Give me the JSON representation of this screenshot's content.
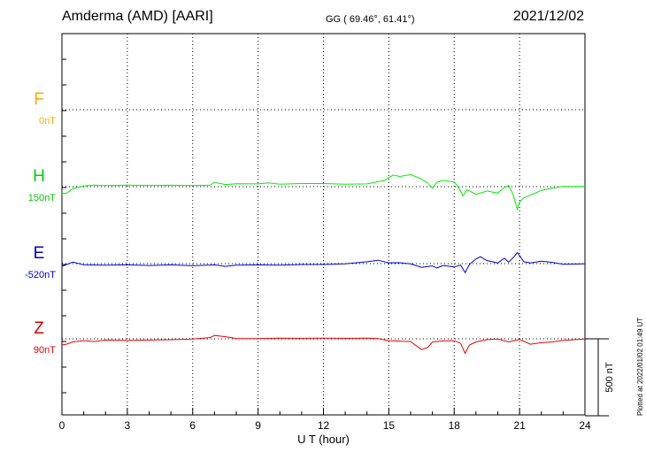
{
  "header": {
    "station": "Amderma (AMD)  [AARI]",
    "coords": "GG ( 69.46°,  61.41°)",
    "date": "2021/12/02"
  },
  "footer": {
    "plotted": "Plotted at 2022/01/02 01:49 UT"
  },
  "chart_data": {
    "type": "line",
    "xlabel": "U T (hour)",
    "xlim": [
      0,
      24
    ],
    "xticks": [
      "0",
      "3",
      "6",
      "9",
      "12",
      "15",
      "18",
      "21",
      "24"
    ],
    "scale_bar_label": "500 nT",
    "grid": true,
    "series": [
      {
        "name": "F",
        "base_label": "0nT",
        "color": "#ffaa00",
        "label_color": "#ffaa00",
        "points": []
      },
      {
        "name": "H",
        "base_label": "150nT",
        "color": "#00ee00",
        "label_color": "#00cc00",
        "points": [
          [
            0,
            -42
          ],
          [
            0.2,
            -45
          ],
          [
            0.5,
            -12
          ],
          [
            1,
            4
          ],
          [
            1.5,
            10
          ],
          [
            2,
            7
          ],
          [
            3,
            10
          ],
          [
            4,
            8
          ],
          [
            5,
            9
          ],
          [
            6,
            7
          ],
          [
            6.8,
            10
          ],
          [
            7,
            28
          ],
          [
            7.5,
            14
          ],
          [
            8,
            19
          ],
          [
            9,
            18
          ],
          [
            9.5,
            25
          ],
          [
            10,
            16
          ],
          [
            11,
            20
          ],
          [
            12,
            20
          ],
          [
            13,
            16
          ],
          [
            14,
            18
          ],
          [
            14.8,
            40
          ],
          [
            15,
            58
          ],
          [
            15.2,
            75
          ],
          [
            15.5,
            66
          ],
          [
            16,
            78
          ],
          [
            16.5,
            50
          ],
          [
            16.8,
            22
          ],
          [
            17,
            -10
          ],
          [
            17.2,
            28
          ],
          [
            17.5,
            40
          ],
          [
            18,
            30
          ],
          [
            18.2,
            -5
          ],
          [
            18.4,
            -60
          ],
          [
            18.6,
            -20
          ],
          [
            19,
            -50
          ],
          [
            19.5,
            -28
          ],
          [
            20,
            -42
          ],
          [
            20.3,
            -5
          ],
          [
            20.5,
            8
          ],
          [
            20.7,
            -50
          ],
          [
            20.9,
            -148
          ],
          [
            21,
            -100
          ],
          [
            21.2,
            -72
          ],
          [
            21.5,
            -55
          ],
          [
            22,
            -24
          ],
          [
            22.5,
            -10
          ],
          [
            23,
            2
          ],
          [
            24,
            2
          ]
        ]
      },
      {
        "name": "E",
        "base_label": "-520nT",
        "color": "#0000dd",
        "label_color": "#0000cc",
        "points": [
          [
            0,
            -18
          ],
          [
            0.5,
            10
          ],
          [
            1,
            -8
          ],
          [
            2,
            -10
          ],
          [
            3,
            -8
          ],
          [
            4,
            -12
          ],
          [
            5,
            -8
          ],
          [
            6,
            -14
          ],
          [
            7,
            -8
          ],
          [
            7.5,
            -18
          ],
          [
            8,
            -10
          ],
          [
            9,
            -8
          ],
          [
            10,
            -10
          ],
          [
            11,
            -6
          ],
          [
            12,
            -6
          ],
          [
            13,
            -2
          ],
          [
            14,
            12
          ],
          [
            14.5,
            22
          ],
          [
            15,
            5
          ],
          [
            15.5,
            6
          ],
          [
            16,
            -2
          ],
          [
            16.5,
            -24
          ],
          [
            17,
            -15
          ],
          [
            17.2,
            -28
          ],
          [
            17.5,
            -12
          ],
          [
            18,
            -22
          ],
          [
            18.3,
            -10
          ],
          [
            18.5,
            -58
          ],
          [
            18.7,
            -5
          ],
          [
            19,
            30
          ],
          [
            19.2,
            45
          ],
          [
            19.5,
            20
          ],
          [
            20,
            4
          ],
          [
            20.3,
            35
          ],
          [
            20.5,
            10
          ],
          [
            20.7,
            38
          ],
          [
            20.9,
            72
          ],
          [
            21.2,
            12
          ],
          [
            21.5,
            4
          ],
          [
            22,
            16
          ],
          [
            22.5,
            8
          ],
          [
            23,
            -4
          ],
          [
            24,
            -2
          ]
        ]
      },
      {
        "name": "Z",
        "base_label": "90nT",
        "color": "#ee0000",
        "label_color": "#dd0000",
        "points": [
          [
            0,
            -40
          ],
          [
            0.2,
            -35
          ],
          [
            0.5,
            -20
          ],
          [
            1,
            -12
          ],
          [
            1.5,
            -18
          ],
          [
            2,
            -8
          ],
          [
            3,
            -10
          ],
          [
            4,
            -8
          ],
          [
            5,
            -6
          ],
          [
            6,
            -2
          ],
          [
            6.8,
            8
          ],
          [
            7,
            22
          ],
          [
            7.5,
            14
          ],
          [
            8,
            2
          ],
          [
            9,
            2
          ],
          [
            10,
            4
          ],
          [
            11,
            3
          ],
          [
            12,
            4
          ],
          [
            13,
            3
          ],
          [
            14,
            4
          ],
          [
            14.5,
            1
          ],
          [
            15,
            -12
          ],
          [
            15.5,
            -15
          ],
          [
            16,
            -18
          ],
          [
            16.5,
            -70
          ],
          [
            16.8,
            -55
          ],
          [
            17,
            -20
          ],
          [
            17.5,
            -14
          ],
          [
            18,
            -12
          ],
          [
            18.3,
            -30
          ],
          [
            18.5,
            -95
          ],
          [
            18.7,
            -40
          ],
          [
            19,
            -20
          ],
          [
            19.5,
            -5
          ],
          [
            20,
            -2
          ],
          [
            20.5,
            -20
          ],
          [
            21,
            -4
          ],
          [
            21.5,
            -35
          ],
          [
            22,
            -25
          ],
          [
            22.5,
            -20
          ],
          [
            23,
            -10
          ],
          [
            24,
            -2
          ]
        ]
      }
    ]
  }
}
